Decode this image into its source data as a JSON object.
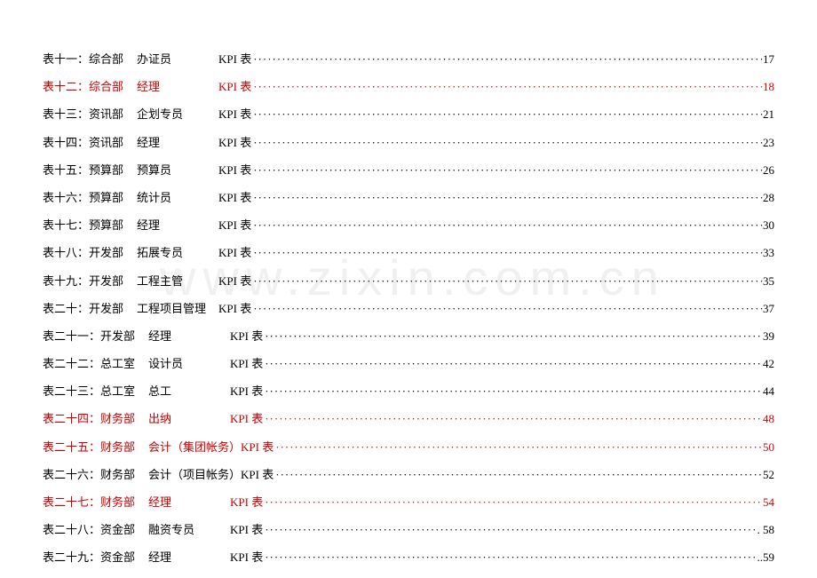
{
  "watermark_text": "www.zixin.com.cn",
  "colors": {
    "normal_text": "#000000",
    "highlighted_text": "#cc0000",
    "background": "#ffffff",
    "watermark": "#f0f0f0"
  },
  "typography": {
    "font_family": "SimSun",
    "font_size": 13,
    "line_spacing": 13
  },
  "dot_char": "·",
  "entries": [
    {
      "label": "表十一：",
      "dept": "综合部",
      "role": "办证员",
      "suffix": "KPI 表",
      "page": "17",
      "highlighted": false,
      "dot_prefix": ""
    },
    {
      "label": "表十二：",
      "dept": "综合部",
      "role": "经理",
      "suffix": "KPI 表",
      "page": "18",
      "highlighted": true,
      "dot_prefix": ""
    },
    {
      "label": "表十三：",
      "dept": "资讯部",
      "role": "企划专员",
      "suffix": "KPI 表",
      "page": "21",
      "highlighted": false,
      "dot_prefix": ""
    },
    {
      "label": "表十四：",
      "dept": "资讯部",
      "role": "经理",
      "suffix": "KPI 表",
      "page": "23",
      "highlighted": false,
      "dot_prefix": ""
    },
    {
      "label": "表十五：",
      "dept": "预算部",
      "role": "预算员",
      "suffix": "KPI 表",
      "page": "26",
      "highlighted": false,
      "dot_prefix": ""
    },
    {
      "label": "表十六：",
      "dept": "预算部",
      "role": "统计员",
      "suffix": "KPI 表",
      "page": "28",
      "highlighted": false,
      "dot_prefix": ""
    },
    {
      "label": "表十七：",
      "dept": "预算部",
      "role": "经理",
      "suffix": "KPI 表",
      "page": "30",
      "highlighted": false,
      "dot_prefix": ""
    },
    {
      "label": "表十八：",
      "dept": "开发部",
      "role": "拓展专员",
      "suffix": "KPI 表",
      "page": "33",
      "highlighted": false,
      "dot_prefix": ""
    },
    {
      "label": "表十九：",
      "dept": "开发部",
      "role": "工程主管",
      "suffix": "KPI 表",
      "page": "35",
      "highlighted": false,
      "dot_prefix": ""
    },
    {
      "label": "表二十：",
      "dept": "开发部",
      "role": "工程项目管理",
      "suffix": "KPI 表",
      "page": "37",
      "highlighted": false,
      "dot_prefix": ""
    },
    {
      "label": "表二十一：",
      "dept": "开发部",
      "role": "经理",
      "suffix": "KPI 表",
      "page": "39",
      "highlighted": false,
      "dot_prefix": ""
    },
    {
      "label": "表二十二：",
      "dept": "总工室",
      "role": "设计员",
      "suffix": "KPI 表",
      "page": "42",
      "highlighted": false,
      "dot_prefix": ""
    },
    {
      "label": "表二十三：",
      "dept": "总工室",
      "role": "总工",
      "suffix": "KPI 表",
      "page": "44",
      "highlighted": false,
      "dot_prefix": ""
    },
    {
      "label": "表二十四：",
      "dept": "财务部",
      "role": "出纳",
      "suffix": "KPI 表",
      "page": "48",
      "highlighted": true,
      "dot_prefix": ""
    },
    {
      "label": "表二十五：",
      "dept": "财务部",
      "role": "会计（集团帐务）",
      "suffix": "KPI 表",
      "page": "50",
      "highlighted": true,
      "dot_prefix": ""
    },
    {
      "label": "表二十六：",
      "dept": "财务部",
      "role": "会计（项目帐务）",
      "suffix": "KPI 表",
      "page": "52",
      "highlighted": false,
      "dot_prefix": ""
    },
    {
      "label": "表二十七：",
      "dept": "财务部",
      "role": "经理",
      "suffix": "KPI 表",
      "page": "54",
      "highlighted": true,
      "dot_prefix": ""
    },
    {
      "label": "表二十八：",
      "dept": "资金部",
      "role": "融资专员",
      "suffix": "KPI 表",
      "page": "58",
      "highlighted": false,
      "dot_prefix": ". "
    },
    {
      "label": "表二十九：",
      "dept": "资金部",
      "role": "经理",
      "suffix": "KPI 表",
      "page": "59",
      "highlighted": false,
      "dot_prefix": ".."
    }
  ]
}
